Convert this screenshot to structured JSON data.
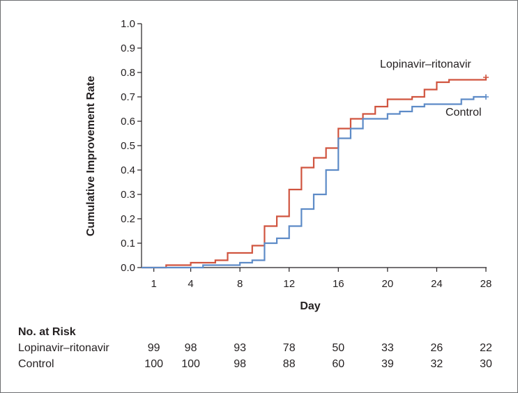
{
  "chart_data": {
    "type": "line",
    "step": true,
    "xlabel": "Day",
    "ylabel": "Cumulative Improvement Rate",
    "xlim": [
      0,
      28
    ],
    "ylim": [
      0,
      1.0
    ],
    "x_ticks": [
      1,
      4,
      8,
      12,
      16,
      20,
      24,
      28
    ],
    "y_ticks": [
      "0.0",
      "0.1",
      "0.2",
      "0.3",
      "0.4",
      "0.5",
      "0.6",
      "0.7",
      "0.8",
      "0.9",
      "1.0"
    ],
    "series": [
      {
        "name": "Lopinavir–ritonavir",
        "color": "#d0543f",
        "points": [
          [
            0,
            0
          ],
          [
            2,
            0.01
          ],
          [
            4,
            0.02
          ],
          [
            6,
            0.03
          ],
          [
            7,
            0.06
          ],
          [
            9,
            0.09
          ],
          [
            10,
            0.17
          ],
          [
            11,
            0.21
          ],
          [
            12,
            0.32
          ],
          [
            13,
            0.41
          ],
          [
            14,
            0.45
          ],
          [
            15,
            0.49
          ],
          [
            16,
            0.57
          ],
          [
            17,
            0.61
          ],
          [
            18,
            0.63
          ],
          [
            19,
            0.66
          ],
          [
            20,
            0.69
          ],
          [
            22,
            0.7
          ],
          [
            23,
            0.73
          ],
          [
            24,
            0.76
          ],
          [
            25,
            0.77
          ],
          [
            28,
            0.78
          ]
        ],
        "censor_end": [
          28,
          0.78
        ]
      },
      {
        "name": "Control",
        "color": "#5d8bc7",
        "points": [
          [
            0,
            0
          ],
          [
            5,
            0.01
          ],
          [
            7,
            0.01
          ],
          [
            8,
            0.02
          ],
          [
            9,
            0.03
          ],
          [
            10,
            0.05
          ],
          [
            10,
            0.1
          ],
          [
            11,
            0.12
          ],
          [
            12,
            0.17
          ],
          [
            13,
            0.24
          ],
          [
            14,
            0.3
          ],
          [
            15,
            0.4
          ],
          [
            16,
            0.53
          ],
          [
            17,
            0.57
          ],
          [
            18,
            0.61
          ],
          [
            20,
            0.63
          ],
          [
            21,
            0.64
          ],
          [
            22,
            0.66
          ],
          [
            23,
            0.67
          ],
          [
            26,
            0.69
          ],
          [
            27,
            0.7
          ],
          [
            28,
            0.7
          ]
        ],
        "censor_end": [
          28,
          0.7
        ]
      }
    ]
  },
  "labels": {
    "lopinavir_series": "Lopinavir–ritonavir",
    "control_series": "Control"
  },
  "risk_table": {
    "title": "No. at Risk",
    "days": [
      1,
      4,
      8,
      12,
      16,
      20,
      24,
      28
    ],
    "rows": [
      {
        "label": "Lopinavir–ritonavir",
        "values": [
          "99",
          "98",
          "93",
          "78",
          "50",
          "33",
          "26",
          "22"
        ]
      },
      {
        "label": "Control",
        "values": [
          "100",
          "100",
          "98",
          "88",
          "60",
          "39",
          "32",
          "30"
        ]
      }
    ]
  }
}
